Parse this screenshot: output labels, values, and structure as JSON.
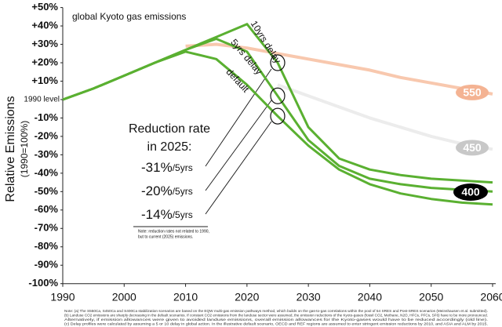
{
  "chart_data": {
    "type": "line",
    "title": "global Kyoto gas emissions",
    "y_label": "Relative Emissions",
    "y_sublabel": "(1990=100%)",
    "x": [
      1990,
      1995,
      2000,
      2005,
      2010,
      2015,
      2020,
      2025,
      2030,
      2035,
      2040,
      2045,
      2050,
      2055,
      2060
    ],
    "series": [
      {
        "name": "550",
        "color": "#f8c8ae",
        "values": [
          null,
          null,
          null,
          null,
          29,
          30,
          28,
          25,
          22,
          19,
          16,
          12,
          9,
          6,
          3
        ]
      },
      {
        "name": "450",
        "color": "#ececec",
        "values": [
          null,
          null,
          null,
          null,
          null,
          null,
          null,
          8,
          2,
          -4,
          -10,
          -15,
          -20,
          -24,
          -27
        ]
      },
      {
        "name": "default",
        "color": "#5ab031",
        "values": [
          0,
          6,
          13,
          20,
          26,
          22,
          8,
          -9,
          -25,
          -38,
          -46,
          -51,
          -54,
          -56,
          -57
        ]
      },
      {
        "name": "5yrs delay",
        "color": "#5ab031",
        "values": [
          0,
          6,
          13,
          20,
          27,
          33,
          26,
          2,
          -22,
          -36,
          -43,
          -46,
          -48,
          -49,
          -50
        ]
      },
      {
        "name": "10yrs delay",
        "color": "#5ab031",
        "values": [
          0,
          6,
          13,
          20,
          27,
          34,
          41,
          20,
          -15,
          -32,
          -38,
          -41,
          -43,
          -44,
          -45
        ]
      }
    ],
    "badge_400": "400",
    "xlim": [
      1990,
      2060
    ],
    "xticks": [
      1990,
      2000,
      2010,
      2020,
      2030,
      2040,
      2050,
      2060
    ],
    "ylim": [
      -100,
      50
    ],
    "yticks": [
      {
        "value": 50,
        "label": "+50%"
      },
      {
        "value": 40,
        "label": "+40%"
      },
      {
        "value": 30,
        "label": "+30%"
      },
      {
        "value": 20,
        "label": "+20%"
      },
      {
        "value": 10,
        "label": "+10%"
      },
      {
        "value": 0,
        "label": "1990 level"
      },
      {
        "value": -10,
        "label": "-10%"
      },
      {
        "value": -20,
        "label": "-20%"
      },
      {
        "value": -30,
        "label": "-30%"
      },
      {
        "value": -40,
        "label": "-40%"
      },
      {
        "value": -50,
        "label": "-50%"
      },
      {
        "value": -60,
        "label": "-60%"
      },
      {
        "value": -70,
        "label": "-70%"
      },
      {
        "value": -80,
        "label": "-80%"
      },
      {
        "value": -90,
        "label": "-90%"
      },
      {
        "value": -100,
        "label": "-100%"
      }
    ],
    "reduction_title_1": "Reduction rate",
    "reduction_title_2": "in 2025:",
    "rates": [
      {
        "rate": "-31%",
        "unit": "/5yrs"
      },
      {
        "rate": "-20%",
        "unit": "/5yrs"
      },
      {
        "rate": "-14%",
        "unit": "/5yrs"
      }
    ],
    "note_1": "Note: reduction rates not related to 1990,",
    "note_2": "but to current (2025) emissions.",
    "footnotes": [
      "Note: (a) The S550Ca, S450Ca and S400Ca stabilization scenarios are based on the EQW multi-gas emission pathways method, which builds on the gas-to-gas correlations within the pool of 54 SRES and Post-SRES scenarios (Meinshausen et al. submitted).",
      "(b) Landuse CO2 emissions are sharply decreasing in the default scenarios. If constant CO2 emissions from the landuse sector were assumed, the emission reductions of the Kyoto-gases (fossil CO2, Methane, N2O, HFCs, PFCs, SF6) have to be more pronounced.",
      "Alternatively, if emission allowances were given to avoided landuse emissions, overall emission allowances for the Kyoto-gases would have to be reduced accordingly (old line).",
      "(c) Delay profiles were calculated by assuming a 5 or 10 delay in global action. In the illustrative default scenario, OECD and REF regions are assumed to enter stringent emission reductions by 2010, and ASIA and ALM by 2015."
    ]
  }
}
